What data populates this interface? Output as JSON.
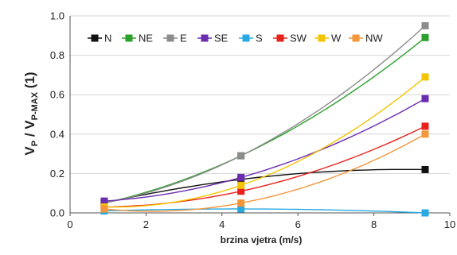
{
  "chart_data": {
    "type": "scatter",
    "title": "",
    "xlabel": "brzina vjetra (m/s)",
    "ylabel": {
      "main": "V",
      "sub1": "P",
      "mid": " / V",
      "sub2": "P-MAX",
      "end": " (1)"
    },
    "xlim": [
      0,
      10
    ],
    "ylim": [
      0,
      1.0
    ],
    "x_ticks": [
      "0",
      "2",
      "4",
      "6",
      "8",
      "10"
    ],
    "y_ticks": [
      "0.0",
      "0.2",
      "0.4",
      "0.6",
      "0.8",
      "1.0"
    ],
    "grid": "horizontal",
    "legend_position": "top",
    "x": [
      0.9,
      4.5,
      9.35
    ],
    "series": [
      {
        "name": "N",
        "color": "#111111",
        "values": [
          0.05,
          0.17,
          0.22
        ]
      },
      {
        "name": "NE",
        "color": "#2ca02c",
        "values": [
          0.05,
          0.29,
          0.89
        ]
      },
      {
        "name": "E",
        "color": "#8c8c8c",
        "values": [
          0.05,
          0.29,
          0.95
        ]
      },
      {
        "name": "SE",
        "color": "#6a2db0",
        "values": [
          0.06,
          0.18,
          0.58
        ]
      },
      {
        "name": "S",
        "color": "#29a9e1",
        "values": [
          0.01,
          0.02,
          0.0
        ]
      },
      {
        "name": "SW",
        "color": "#e8221b",
        "values": [
          0.03,
          0.11,
          0.44
        ]
      },
      {
        "name": "W",
        "color": "#f5c400",
        "values": [
          0.03,
          0.14,
          0.69
        ]
      },
      {
        "name": "NW",
        "color": "#f4963a",
        "values": [
          0.02,
          0.05,
          0.4
        ]
      }
    ]
  }
}
